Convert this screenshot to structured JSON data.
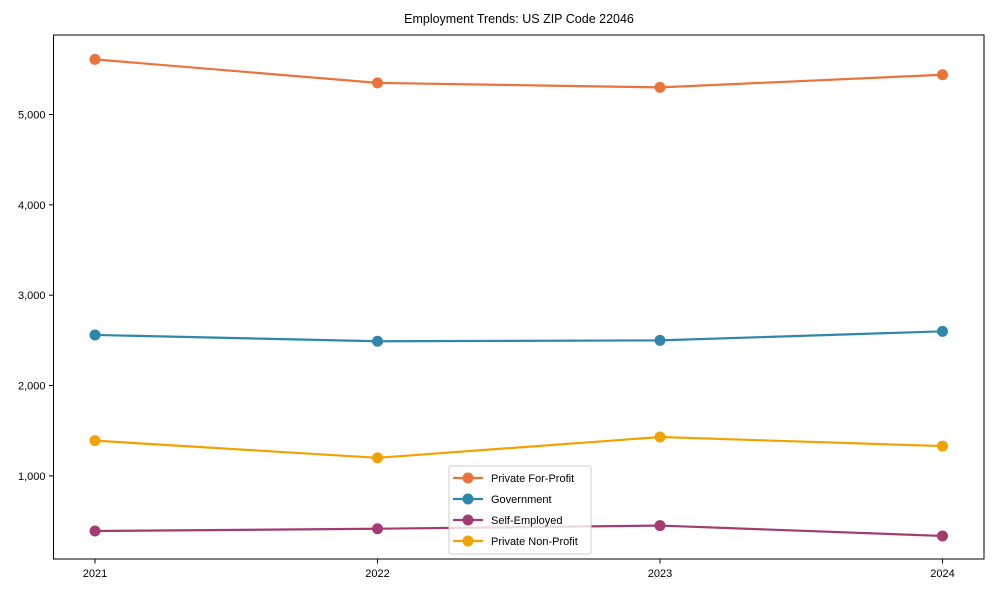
{
  "chart_data": {
    "type": "line",
    "title": "Employment Trends: US ZIP Code 22046",
    "xlabel": "",
    "ylabel": "",
    "x": [
      2021,
      2022,
      2023,
      2024
    ],
    "x_tick_labels": [
      "2021",
      "2022",
      "2023",
      "2024"
    ],
    "y_ticks": [
      1000,
      2000,
      3000,
      4000,
      5000
    ],
    "y_tick_labels": [
      "1,000",
      "2,000",
      "3,000",
      "4,000",
      "5,000"
    ],
    "ylim": [
      80,
      5880
    ],
    "grid": false,
    "legend": {
      "location": "lower center (inside plot)",
      "frame": true,
      "frame_color": "#cccccc",
      "background": "rgba(255,255,255,0.8)"
    },
    "series": [
      {
        "name": "Private For-Profit",
        "color": "#E8743B",
        "values": [
          5610,
          5350,
          5300,
          5440
        ]
      },
      {
        "name": "Government",
        "color": "#2E86AB",
        "values": [
          2560,
          2490,
          2500,
          2600
        ]
      },
      {
        "name": "Self-Employed",
        "color": "#A23B72",
        "values": [
          390,
          415,
          450,
          335
        ]
      },
      {
        "name": "Private Non-Profit",
        "color": "#F0A202",
        "values": [
          1390,
          1200,
          1430,
          1330
        ]
      }
    ],
    "marker": "circle",
    "axis_color": "#000000"
  }
}
